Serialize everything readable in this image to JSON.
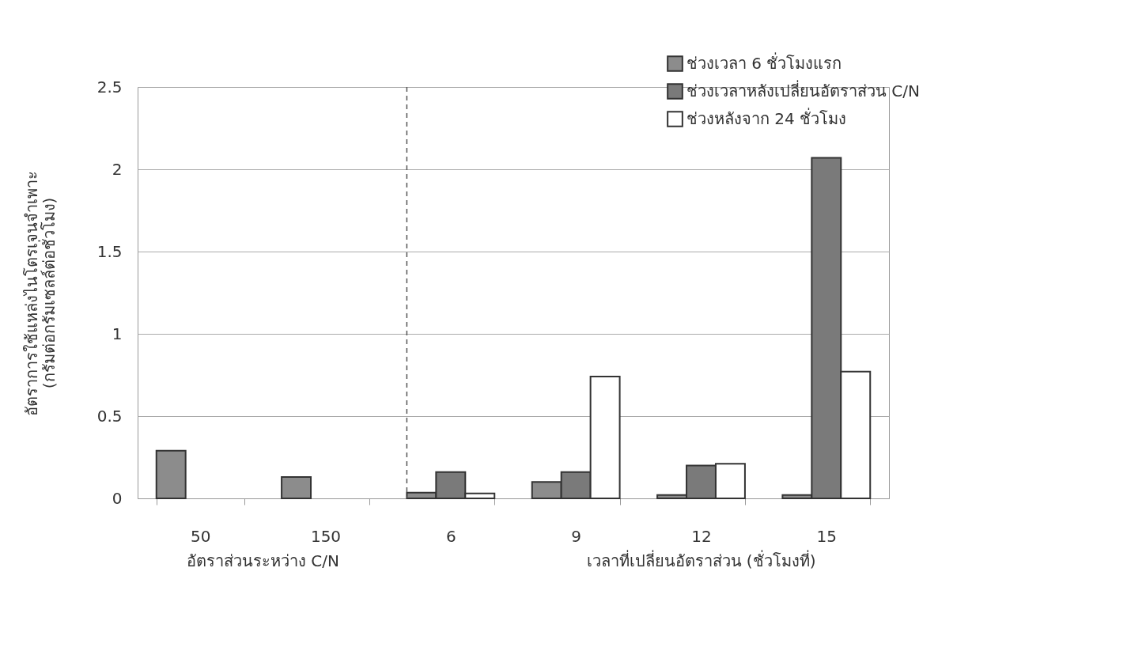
{
  "chart_data": {
    "type": "bar",
    "ylabel": "อัตราการใช้แหล่งไนโตรเจนจำเพาะ\n(กรัมต่อกรัมเซลล์ต่อชั่วโมง)",
    "categories": [
      "50",
      "150",
      "6",
      "9",
      "12",
      "15"
    ],
    "series": [
      {
        "name": "ช่วงเวลา 6 ชั่วโมงแรก",
        "color": "#8c8c8c",
        "values": [
          0.29,
          0.13,
          0.035,
          0.1,
          0.02,
          0.02
        ]
      },
      {
        "name": "ช่วงเวลาหลังเปลี่ยนอัตราส่วน C/N",
        "color": "#7a7a7a",
        "values": [
          null,
          null,
          0.16,
          0.16,
          0.2,
          2.07
        ]
      },
      {
        "name": "ช่วงหลังจาก 24 ชั่วโมง",
        "color": "#ffffff",
        "values": [
          null,
          null,
          0.03,
          0.74,
          0.21,
          0.77
        ]
      }
    ],
    "ylim": [
      0,
      2.5
    ],
    "yticks": [
      0,
      0.5,
      1,
      1.5,
      2,
      2.5
    ],
    "grid": "y",
    "legend": "top right",
    "ref_lines": [
      {
        "axis": "x",
        "value": "6",
        "line_style": "dashed"
      }
    ],
    "annotations": [
      "อัตราส่วนระหว่าง C/N",
      "เวลาที่เปลี่ยนอัตราส่วน  (ชั่วโมงที่)"
    ]
  }
}
